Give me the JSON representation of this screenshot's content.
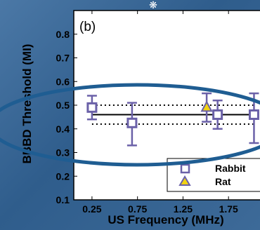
{
  "colors": {
    "marker": "#6b61a8",
    "rat_fill": "#f2d313",
    "ellipse": "#1f5d92",
    "plot_bg": "#ffffff"
  },
  "chart_data": {
    "type": "scatter",
    "panel_label": "(b)",
    "xlabel": "US Frequency (MHz)",
    "ylabel": "BBBD Threshold (MI)",
    "xlim": [
      0.05,
      2.15
    ],
    "ylim": [
      0.1,
      0.9
    ],
    "x_ticks": [
      "0.25",
      "0.75",
      "1.25",
      "1.75"
    ],
    "y_ticks": [
      "0.1",
      "0.2",
      "0.3",
      "0.4",
      "0.5",
      "0.6",
      "0.7",
      "0.8"
    ],
    "series": [
      {
        "name": "Rabbit",
        "marker": "square",
        "points": [
          {
            "x": 0.25,
            "y": 0.49,
            "lo": 0.44,
            "hi": 0.54
          },
          {
            "x": 0.69,
            "y": 0.425,
            "lo": 0.33,
            "hi": 0.51
          },
          {
            "x": 1.63,
            "y": 0.46,
            "lo": 0.4,
            "hi": 0.52
          },
          {
            "x": 2.03,
            "y": 0.46,
            "lo": 0.34,
            "hi": 0.55
          }
        ]
      },
      {
        "name": "Rat",
        "marker": "triangle",
        "points": [
          {
            "x": 1.51,
            "y": 0.49,
            "lo": 0.43,
            "hi": 0.55
          }
        ]
      }
    ],
    "mean_line": 0.46,
    "mean_bounds": [
      0.42,
      0.5
    ],
    "legend_position": "bottom-right"
  }
}
